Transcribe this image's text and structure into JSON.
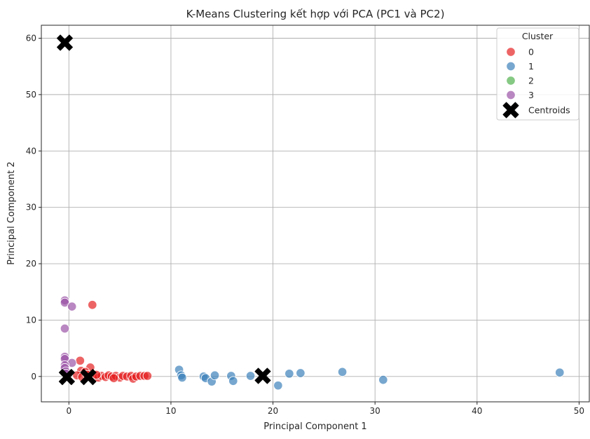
{
  "chart_data": {
    "type": "scatter",
    "title": "K-Means Clustering kết hợp với PCA (PC1 và PC2)",
    "xlabel": "Principal Component 1",
    "ylabel": "Principal Component 2",
    "xlim": [
      -2.7,
      51
    ],
    "ylim": [
      -4.5,
      62.3
    ],
    "xticks": [
      0,
      10,
      20,
      30,
      40,
      50
    ],
    "yticks": [
      0,
      10,
      20,
      30,
      40,
      50,
      60
    ],
    "xtick_labels": [
      "0",
      "10",
      "20",
      "30",
      "40",
      "50"
    ],
    "ytick_labels": [
      "0",
      "10",
      "20",
      "30",
      "40",
      "50",
      "60"
    ],
    "grid": true,
    "legend": {
      "title": "Cluster",
      "position": "top-right"
    },
    "series": [
      {
        "name": "0",
        "color": "#e41a1c",
        "points": [
          [
            2.3,
            12.7
          ],
          [
            1.1,
            2.8
          ],
          [
            2.1,
            1.6
          ],
          [
            1.2,
            1.0
          ],
          [
            1.6,
            0.8
          ],
          [
            0.8,
            0.2
          ],
          [
            1.3,
            -0.1
          ],
          [
            1.8,
            0.3
          ],
          [
            2.5,
            0.2
          ],
          [
            2.9,
            -0.2
          ],
          [
            3.2,
            0.1
          ],
          [
            3.6,
            -0.1
          ],
          [
            3.9,
            0.2
          ],
          [
            4.2,
            0.0
          ],
          [
            4.6,
            0.1
          ],
          [
            5.0,
            -0.2
          ],
          [
            5.3,
            0.1
          ],
          [
            5.7,
            0.0
          ],
          [
            6.1,
            0.1
          ],
          [
            6.3,
            -0.4
          ],
          [
            6.6,
            0.0
          ],
          [
            7.0,
            0.1
          ],
          [
            7.4,
            0.1
          ],
          [
            7.7,
            0.1
          ],
          [
            2.7,
            0.3
          ],
          [
            4.4,
            -0.3
          ]
        ]
      },
      {
        "name": "1",
        "color": "#377eb8",
        "points": [
          [
            10.8,
            1.2
          ],
          [
            11.0,
            0.2
          ],
          [
            11.1,
            -0.2
          ],
          [
            13.2,
            0.0
          ],
          [
            13.4,
            -0.3
          ],
          [
            14.0,
            -0.9
          ],
          [
            14.3,
            0.2
          ],
          [
            15.9,
            0.1
          ],
          [
            16.1,
            -0.8
          ],
          [
            17.8,
            0.1
          ],
          [
            20.5,
            -1.6
          ],
          [
            21.6,
            0.5
          ],
          [
            22.7,
            0.6
          ],
          [
            26.8,
            0.8
          ],
          [
            30.8,
            -0.6
          ],
          [
            48.1,
            0.7
          ]
        ]
      },
      {
        "name": "2",
        "color": "#4daf4a",
        "points": []
      },
      {
        "name": "3",
        "color": "#984ea3",
        "points": [
          [
            -0.4,
            13.5
          ],
          [
            -0.4,
            13.1
          ],
          [
            0.3,
            12.4
          ],
          [
            -0.4,
            8.5
          ],
          [
            -0.4,
            3.5
          ],
          [
            -0.4,
            3.1
          ],
          [
            0.3,
            2.4
          ],
          [
            -0.4,
            2.0
          ],
          [
            -0.4,
            1.5
          ],
          [
            -0.3,
            0.9
          ],
          [
            -0.3,
            0.5
          ]
        ]
      }
    ],
    "centroids": {
      "name": "Centroids",
      "color": "#000000",
      "points": [
        [
          -0.4,
          59.2
        ],
        [
          -0.2,
          -0.1
        ],
        [
          1.9,
          -0.1
        ],
        [
          19.0,
          0.1
        ]
      ]
    }
  }
}
